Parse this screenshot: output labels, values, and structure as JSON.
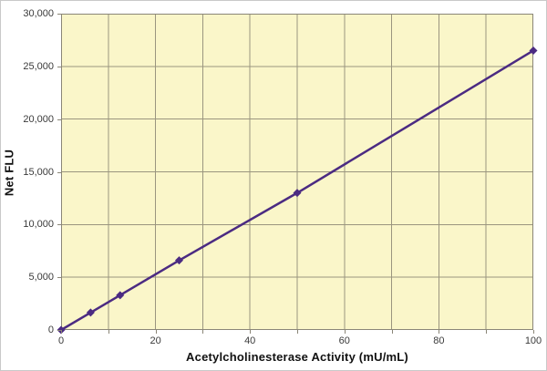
{
  "chart_data": {
    "type": "line",
    "title": "",
    "xlabel": "Acetylcholinesterase Activity (mU/mL)",
    "ylabel": "Net FLU",
    "x": [
      0,
      6.25,
      12.5,
      25,
      50,
      100
    ],
    "y": [
      0,
      1650,
      3300,
      6600,
      13000,
      26500
    ],
    "xlim": [
      0,
      100
    ],
    "ylim": [
      0,
      30000
    ],
    "x_major_ticks": [
      0,
      20,
      40,
      60,
      80,
      100
    ],
    "x_tick_labels": [
      "0",
      "20",
      "40",
      "60",
      "80",
      "100"
    ],
    "x_minor_tick_step": 10,
    "y_ticks": [
      0,
      5000,
      10000,
      15000,
      20000,
      25000,
      30000
    ],
    "y_tick_labels": [
      "0",
      "5,000",
      "10,000",
      "15,000",
      "20,000",
      "25,000",
      "30,000"
    ],
    "grid": "on",
    "legend": "none",
    "marker": "diamond",
    "colors": {
      "line": "#4b2b82",
      "marker": "#4b2b82",
      "plot_bg": "#faf6c9",
      "grid": "#9a957f",
      "axis_border": "#8a8677",
      "tick_text": "#3a3a3a",
      "title_text": "#111111",
      "page_bg": "#ffffff"
    }
  }
}
